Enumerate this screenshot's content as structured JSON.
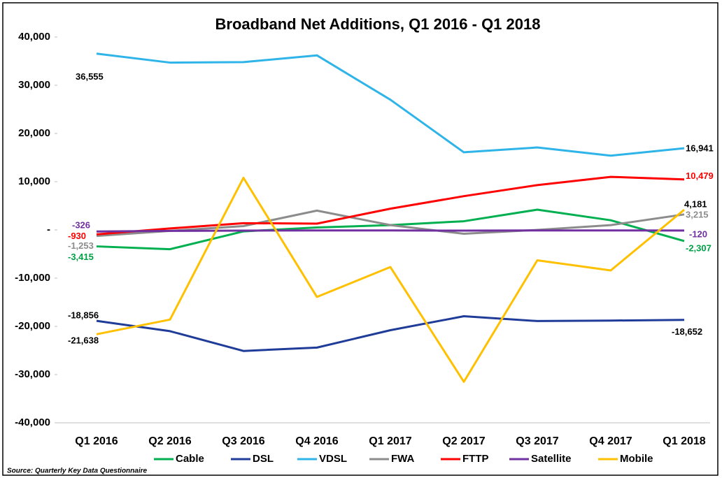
{
  "chart_data": {
    "type": "line",
    "title": "Broadband Net Additions, Q1 2016 - Q1 2018",
    "categories": [
      "Q1 2016",
      "Q2 2016",
      "Q3 2016",
      "Q4 2016",
      "Q1 2017",
      "Q2 2017",
      "Q3 2017",
      "Q4 2017",
      "Q1 2018"
    ],
    "ylim": [
      -40000,
      40000
    ],
    "yticks": [
      {
        "value": -40000,
        "label": "-40,000"
      },
      {
        "value": -30000,
        "label": "-30,000"
      },
      {
        "value": -20000,
        "label": "-20,000"
      },
      {
        "value": -10000,
        "label": "-10,000"
      },
      {
        "value": 0,
        "label": "-"
      },
      {
        "value": 10000,
        "label": "10,000"
      },
      {
        "value": 20000,
        "label": "20,000"
      },
      {
        "value": 30000,
        "label": "30,000"
      },
      {
        "value": 40000,
        "label": "40,000"
      }
    ],
    "series": [
      {
        "name": "Cable",
        "color": "#00b050",
        "label_color": "#00a046",
        "values": [
          -3415,
          -4000,
          -300,
          500,
          1000,
          1800,
          4200,
          2000,
          -2307
        ],
        "value_labels": [
          "-3,415",
          null,
          null,
          null,
          null,
          null,
          null,
          null,
          "-2,307"
        ]
      },
      {
        "name": "DSL",
        "color": "#1f3c99",
        "label_color": "#000000",
        "values": [
          -18856,
          -21000,
          -25100,
          -24400,
          -20800,
          -17900,
          -18900,
          -18800,
          -18652
        ],
        "value_labels": [
          "-18,856",
          null,
          null,
          null,
          null,
          null,
          null,
          null,
          "-18,652"
        ]
      },
      {
        "name": "VDSL",
        "color": "#2eb4e8",
        "label_color": "#000000",
        "values": [
          36555,
          34700,
          34800,
          36200,
          27000,
          16100,
          17100,
          15400,
          16941
        ],
        "value_labels": [
          "36,555",
          null,
          null,
          null,
          null,
          null,
          null,
          null,
          "16,941"
        ]
      },
      {
        "name": "FWA",
        "color": "#8c8c8c",
        "label_color": "#8c8c8c",
        "values": [
          -1253,
          -200,
          800,
          4000,
          1000,
          -800,
          0,
          1000,
          3215
        ],
        "value_labels": [
          "-1,253",
          null,
          null,
          null,
          null,
          null,
          null,
          null,
          "3,215"
        ]
      },
      {
        "name": "FTTP",
        "color": "#ff0000",
        "label_color": "#ff0000",
        "values": [
          -930,
          300,
          1400,
          1300,
          4400,
          7000,
          9300,
          11000,
          10479
        ],
        "value_labels": [
          "-930",
          null,
          null,
          null,
          null,
          null,
          null,
          null,
          "10,479"
        ]
      },
      {
        "name": "Satellite",
        "color": "#7030a0",
        "label_color": "#7030a0",
        "values": [
          -326,
          -200,
          -150,
          -100,
          -100,
          -150,
          -100,
          -100,
          -120
        ],
        "value_labels": [
          "-326",
          null,
          null,
          null,
          null,
          null,
          null,
          null,
          "-120"
        ]
      },
      {
        "name": "Mobile",
        "color": "#ffc000",
        "label_color": "#000000",
        "values": [
          -21638,
          -18600,
          10800,
          -13900,
          -7700,
          -31500,
          -6300,
          -8400,
          4181
        ],
        "value_labels": [
          "-21,638",
          null,
          null,
          null,
          null,
          null,
          null,
          null,
          "4,181"
        ]
      }
    ],
    "source": "Source: Quarterly Key Data Questionnaire"
  }
}
